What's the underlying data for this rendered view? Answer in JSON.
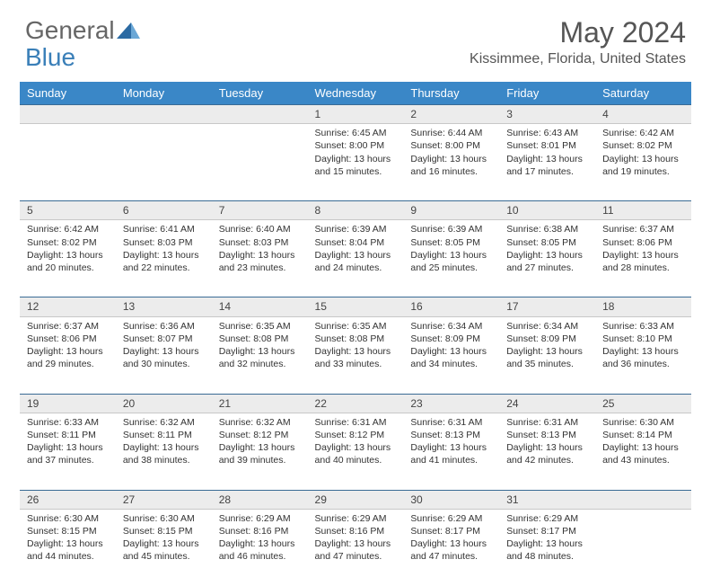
{
  "brand": {
    "part1": "General",
    "part2": "Blue"
  },
  "title": "May 2024",
  "location": "Kissimmee, Florida, United States",
  "colors": {
    "header_bg": "#3a87c7",
    "header_text": "#ffffff",
    "daynum_bg": "#ececec",
    "rule": "#3a6b95",
    "brand_blue": "#3a7fb8",
    "text": "#333333"
  },
  "weekdays": [
    "Sunday",
    "Monday",
    "Tuesday",
    "Wednesday",
    "Thursday",
    "Friday",
    "Saturday"
  ],
  "weeks": [
    [
      null,
      null,
      null,
      {
        "n": "1",
        "sr": "6:45 AM",
        "ss": "8:00 PM",
        "dl": "13 hours and 15 minutes."
      },
      {
        "n": "2",
        "sr": "6:44 AM",
        "ss": "8:00 PM",
        "dl": "13 hours and 16 minutes."
      },
      {
        "n": "3",
        "sr": "6:43 AM",
        "ss": "8:01 PM",
        "dl": "13 hours and 17 minutes."
      },
      {
        "n": "4",
        "sr": "6:42 AM",
        "ss": "8:02 PM",
        "dl": "13 hours and 19 minutes."
      }
    ],
    [
      {
        "n": "5",
        "sr": "6:42 AM",
        "ss": "8:02 PM",
        "dl": "13 hours and 20 minutes."
      },
      {
        "n": "6",
        "sr": "6:41 AM",
        "ss": "8:03 PM",
        "dl": "13 hours and 22 minutes."
      },
      {
        "n": "7",
        "sr": "6:40 AM",
        "ss": "8:03 PM",
        "dl": "13 hours and 23 minutes."
      },
      {
        "n": "8",
        "sr": "6:39 AM",
        "ss": "8:04 PM",
        "dl": "13 hours and 24 minutes."
      },
      {
        "n": "9",
        "sr": "6:39 AM",
        "ss": "8:05 PM",
        "dl": "13 hours and 25 minutes."
      },
      {
        "n": "10",
        "sr": "6:38 AM",
        "ss": "8:05 PM",
        "dl": "13 hours and 27 minutes."
      },
      {
        "n": "11",
        "sr": "6:37 AM",
        "ss": "8:06 PM",
        "dl": "13 hours and 28 minutes."
      }
    ],
    [
      {
        "n": "12",
        "sr": "6:37 AM",
        "ss": "8:06 PM",
        "dl": "13 hours and 29 minutes."
      },
      {
        "n": "13",
        "sr": "6:36 AM",
        "ss": "8:07 PM",
        "dl": "13 hours and 30 minutes."
      },
      {
        "n": "14",
        "sr": "6:35 AM",
        "ss": "8:08 PM",
        "dl": "13 hours and 32 minutes."
      },
      {
        "n": "15",
        "sr": "6:35 AM",
        "ss": "8:08 PM",
        "dl": "13 hours and 33 minutes."
      },
      {
        "n": "16",
        "sr": "6:34 AM",
        "ss": "8:09 PM",
        "dl": "13 hours and 34 minutes."
      },
      {
        "n": "17",
        "sr": "6:34 AM",
        "ss": "8:09 PM",
        "dl": "13 hours and 35 minutes."
      },
      {
        "n": "18",
        "sr": "6:33 AM",
        "ss": "8:10 PM",
        "dl": "13 hours and 36 minutes."
      }
    ],
    [
      {
        "n": "19",
        "sr": "6:33 AM",
        "ss": "8:11 PM",
        "dl": "13 hours and 37 minutes."
      },
      {
        "n": "20",
        "sr": "6:32 AM",
        "ss": "8:11 PM",
        "dl": "13 hours and 38 minutes."
      },
      {
        "n": "21",
        "sr": "6:32 AM",
        "ss": "8:12 PM",
        "dl": "13 hours and 39 minutes."
      },
      {
        "n": "22",
        "sr": "6:31 AM",
        "ss": "8:12 PM",
        "dl": "13 hours and 40 minutes."
      },
      {
        "n": "23",
        "sr": "6:31 AM",
        "ss": "8:13 PM",
        "dl": "13 hours and 41 minutes."
      },
      {
        "n": "24",
        "sr": "6:31 AM",
        "ss": "8:13 PM",
        "dl": "13 hours and 42 minutes."
      },
      {
        "n": "25",
        "sr": "6:30 AM",
        "ss": "8:14 PM",
        "dl": "13 hours and 43 minutes."
      }
    ],
    [
      {
        "n": "26",
        "sr": "6:30 AM",
        "ss": "8:15 PM",
        "dl": "13 hours and 44 minutes."
      },
      {
        "n": "27",
        "sr": "6:30 AM",
        "ss": "8:15 PM",
        "dl": "13 hours and 45 minutes."
      },
      {
        "n": "28",
        "sr": "6:29 AM",
        "ss": "8:16 PM",
        "dl": "13 hours and 46 minutes."
      },
      {
        "n": "29",
        "sr": "6:29 AM",
        "ss": "8:16 PM",
        "dl": "13 hours and 47 minutes."
      },
      {
        "n": "30",
        "sr": "6:29 AM",
        "ss": "8:17 PM",
        "dl": "13 hours and 47 minutes."
      },
      {
        "n": "31",
        "sr": "6:29 AM",
        "ss": "8:17 PM",
        "dl": "13 hours and 48 minutes."
      },
      null
    ]
  ],
  "labels": {
    "sunrise": "Sunrise:",
    "sunset": "Sunset:",
    "daylight": "Daylight:"
  }
}
